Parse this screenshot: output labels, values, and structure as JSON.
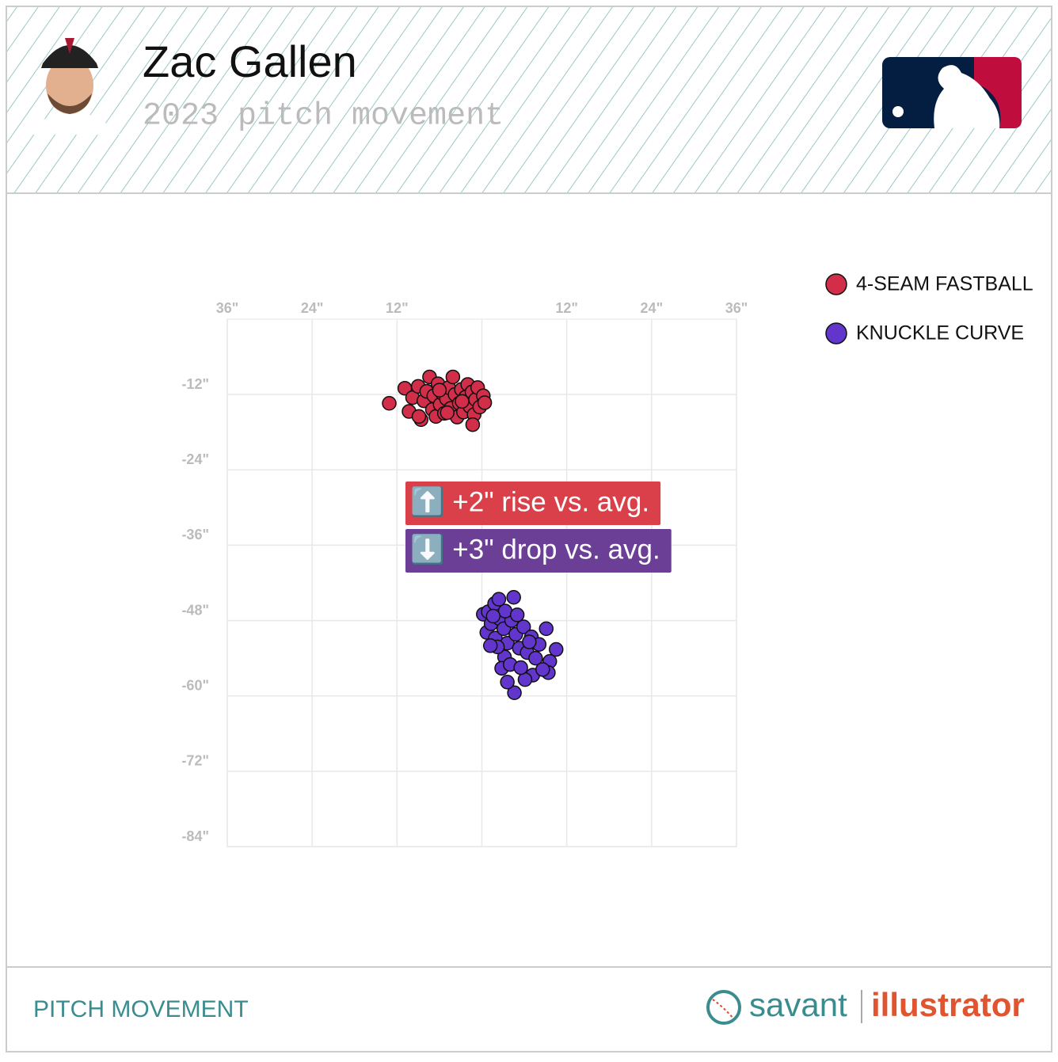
{
  "chart_data": {
    "type": "scatter",
    "title": "Zac Gallen",
    "subtitle": "2023 pitch movement",
    "xlim": [
      -36,
      36
    ],
    "ylim": [
      -84,
      0
    ],
    "xticks": [
      {
        "value": -36,
        "label": "36\""
      },
      {
        "value": -24,
        "label": "24\""
      },
      {
        "value": -12,
        "label": "12\""
      },
      {
        "value": 0,
        "label": null
      },
      {
        "value": 12,
        "label": "12\""
      },
      {
        "value": 24,
        "label": "24\""
      },
      {
        "value": 36,
        "label": "36\""
      }
    ],
    "yticks": [
      {
        "value": -12,
        "label": "-12\""
      },
      {
        "value": -24,
        "label": "-24\""
      },
      {
        "value": -36,
        "label": "-36\""
      },
      {
        "value": -48,
        "label": "-48\""
      },
      {
        "value": -60,
        "label": "-60\""
      },
      {
        "value": -72,
        "label": "-72\""
      },
      {
        "value": -84,
        "label": "-84\""
      }
    ],
    "grid": true,
    "legend": "top-right",
    "series": [
      {
        "name": "4-SEAM FASTBALL",
        "color": "#d22d49",
        "x": [
          -13.1,
          -10.9,
          -10.3,
          -9.8,
          -9.0,
          -8.6,
          -8.2,
          -7.8,
          -7.4,
          -7.0,
          -6.8,
          -6.5,
          -6.2,
          -5.9,
          -5.6,
          -5.3,
          -5.0,
          -4.7,
          -4.4,
          -4.1,
          -3.8,
          -3.5,
          -3.2,
          -2.9,
          -2.6,
          -2.3,
          -2.0,
          -1.7,
          -1.4,
          -1.1,
          -0.9,
          -0.6,
          -0.3,
          0.2,
          0.4,
          -1.3,
          -8.9,
          -4.9,
          -6.0,
          -2.8
        ],
        "values": [
          -13.4,
          -11.0,
          -14.7,
          -12.5,
          -10.7,
          -16.0,
          -13.0,
          -11.5,
          -9.2,
          -14.4,
          -12.2,
          -15.5,
          -10.3,
          -13.6,
          -11.8,
          -15.0,
          -12.7,
          -10.9,
          -14.2,
          -9.2,
          -12.0,
          -15.6,
          -13.4,
          -11.2,
          -14.8,
          -12.4,
          -10.4,
          -13.9,
          -11.6,
          -15.2,
          -12.8,
          -10.9,
          -14.0,
          -12.2,
          -13.3,
          -16.8,
          -15.5,
          -14.9,
          -11.3,
          -13.1
        ],
        "annotation": "⬆️ +2\" rise vs. avg.",
        "annotation_color": "#d9404a"
      },
      {
        "name": "KNUCKLE CURVE",
        "color": "#6236cd",
        "x": [
          0.2,
          0.9,
          1.8,
          2.4,
          4.5,
          0.7,
          1.3,
          1.9,
          2.5,
          3.1,
          3.6,
          4.2,
          4.8,
          5.3,
          5.9,
          6.4,
          7.0,
          7.6,
          8.1,
          9.1,
          10.5,
          9.6,
          9.4,
          7.2,
          6.1,
          4.6,
          3.6,
          3.2,
          2.2,
          1.2,
          2.8,
          4.0,
          5.5,
          8.6,
          3.3,
          1.6,
          5.0,
          6.7
        ],
        "values": [
          -47.0,
          -46.6,
          -45.3,
          -44.6,
          -44.3,
          -49.9,
          -48.5,
          -50.8,
          -47.7,
          -49.3,
          -51.6,
          -48.0,
          -50.2,
          -52.4,
          -49.0,
          -53.1,
          -50.6,
          -54.0,
          -51.8,
          -49.3,
          -52.6,
          -54.5,
          -56.3,
          -56.7,
          -57.4,
          -59.5,
          -57.8,
          -53.8,
          -52.2,
          -52.0,
          -55.6,
          -55.0,
          -55.5,
          -55.8,
          -46.5,
          -47.3,
          -47.1,
          -51.4
        ],
        "annotation": "⬇️ +3\" drop vs. avg.",
        "annotation_color": "#6b3f96"
      }
    ]
  },
  "footer": {
    "label": "PITCH MOVEMENT",
    "brand_left": "savant",
    "brand_right": "illustrator"
  }
}
